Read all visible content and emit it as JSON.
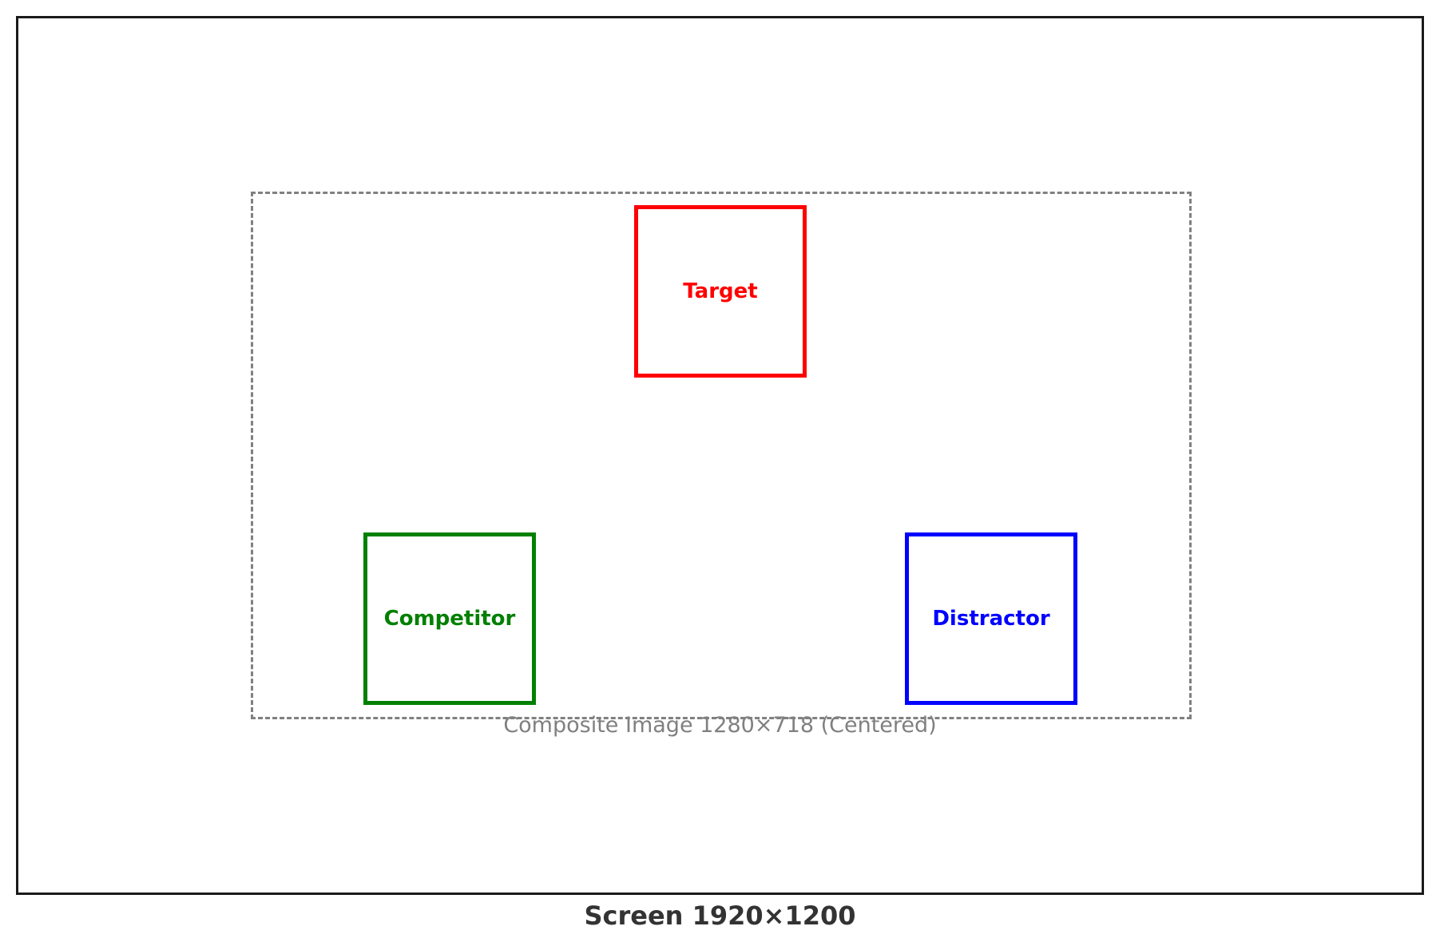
{
  "screen": {
    "caption": "Screen 1920×1200",
    "border_color": "#1a1a1a"
  },
  "composite": {
    "caption": "Composite Image 1280×718 (Centered)",
    "border_color": "#808080",
    "border_style": "dashed"
  },
  "stimuli": {
    "target": {
      "label": "Target",
      "color": "#ff0000"
    },
    "competitor": {
      "label": "Competitor",
      "color": "#008000"
    },
    "distractor": {
      "label": "Distractor",
      "color": "#0000ff"
    }
  }
}
